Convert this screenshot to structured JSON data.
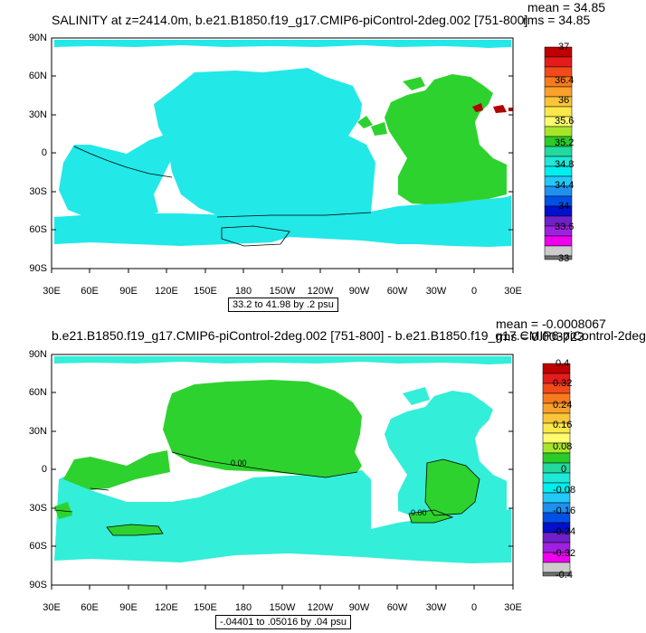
{
  "panels": [
    {
      "title": "SALINITY at z=2414.0m, b.e21.B1850.f19_g17.CMIP6-piControl-2deg.002 [751-800]",
      "mean": "mean = 34.85",
      "rms": "rms = 34.85",
      "contour_info": "33.2 to 41.98 by .2 psu",
      "ylabels": [
        "90N",
        "60N",
        "30N",
        "0",
        "30S",
        "60S",
        "90S"
      ],
      "xlabels": [
        "30E",
        "60E",
        "90E",
        "120E",
        "150E",
        "180",
        "150W",
        "120W",
        "90W",
        "60W",
        "30W",
        "0",
        "30E"
      ],
      "colorbar_labels": [
        "37",
        "36.4",
        "36",
        "35.6",
        "35.2",
        "34.8",
        "34.4",
        "34",
        "33.6",
        "33"
      ],
      "colorbar_colors": [
        "#c00000",
        "#e41c1c",
        "#f24a1a",
        "#f77b1e",
        "#fba02a",
        "#fbc53a",
        "#fbe84a",
        "#fcfc6e",
        "#a6e62a",
        "#29cc29",
        "#22d9a0",
        "#1ee8d8",
        "#00eeee",
        "#22c8f8",
        "#1e90f0",
        "#0050e6",
        "#0010cc",
        "#7020c8",
        "#a020e0",
        "#ee00ee",
        "#cccccc",
        "#707070"
      ],
      "map_fill": "#33eeee",
      "contour_label": ""
    },
    {
      "title": "b.e21.B1850.f19_g17.CMIP6-piControl-2deg.002 [751-800] - b.e21.B1850.f19_g17.CMIP6-piControl-2deg",
      "mean": "mean = -0.0008067",
      "rms": "rms = 0.003723",
      "contour_info": "-.04401 to .05016 by .04 psu",
      "ylabels": [
        "90N",
        "60N",
        "30N",
        "0",
        "30S",
        "60S",
        "90S"
      ],
      "xlabels": [
        "30E",
        "60E",
        "90E",
        "120E",
        "150E",
        "180",
        "150W",
        "120W",
        "90W",
        "60W",
        "30W",
        "0",
        "30E"
      ],
      "colorbar_labels": [
        "0.4",
        "0.32",
        "0.24",
        "0.16",
        "0.08",
        "0",
        "-0.08",
        "-0.16",
        "-0.24",
        "-0.32",
        "-0.4"
      ],
      "colorbar_colors": [
        "#c00000",
        "#e41c1c",
        "#f24a1a",
        "#f77b1e",
        "#fba02a",
        "#fbc53a",
        "#fbe84a",
        "#fcfc6e",
        "#a6e62a",
        "#29cc29",
        "#22d9a0",
        "#1ee8d8",
        "#00eeee",
        "#22c8f8",
        "#1e90f0",
        "#0050e6",
        "#0010cc",
        "#7020c8",
        "#a020e0",
        "#ee00ee",
        "#cccccc",
        "#707070"
      ],
      "map_fill": "#33eed8",
      "contour_label": "0.00"
    }
  ],
  "colors": {
    "ocean_cyan": "#22e8e8",
    "ocean_green": "#2ed22e",
    "dark_red": "#b00000"
  }
}
